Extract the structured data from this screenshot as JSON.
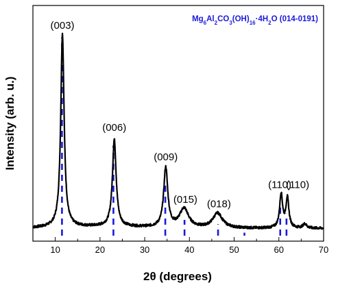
{
  "chart_data": {
    "type": "line",
    "title": "",
    "xlabel": "2θ (degrees)",
    "ylabel": "Intensity (arb. u.)",
    "xlim": [
      5,
      70
    ],
    "ylim": [
      0,
      1
    ],
    "xticks": [
      10,
      20,
      30,
      40,
      50,
      60,
      70
    ],
    "y_ticklabels_shown": false,
    "grid": false,
    "legend": {
      "position": "top-right",
      "parts": [
        {
          "text": "Mg",
          "sub": false
        },
        {
          "text": "6",
          "sub": true
        },
        {
          "text": "Al",
          "sub": false
        },
        {
          "text": "2",
          "sub": true
        },
        {
          "text": "CO",
          "sub": false
        },
        {
          "text": "3",
          "sub": true
        },
        {
          "text": "(OH)",
          "sub": false
        },
        {
          "text": "16",
          "sub": true
        },
        {
          "text": "·4H",
          "sub": false
        },
        {
          "text": "2",
          "sub": true
        },
        {
          "text": "O (014-0191)",
          "sub": false
        }
      ],
      "color": "#1a1adb"
    },
    "series": [
      {
        "kind": "pattern",
        "color": "#000000",
        "baseline": 0.06,
        "peaks": [
          {
            "x": 11.6,
            "height": 0.91,
            "width": 0.45
          },
          {
            "x": 23.2,
            "height": 0.41,
            "width": 0.5
          },
          {
            "x": 34.7,
            "height": 0.28,
            "width": 0.55
          },
          {
            "x": 38.8,
            "height": 0.09,
            "width": 1.2
          },
          {
            "x": 46.3,
            "height": 0.07,
            "width": 1.3
          },
          {
            "x": 60.5,
            "height": 0.16,
            "width": 0.4
          },
          {
            "x": 61.9,
            "height": 0.14,
            "width": 0.4
          },
          {
            "x": 65.8,
            "height": 0.02,
            "width": 0.5
          }
        ]
      },
      {
        "kind": "reference",
        "color": "#1a1adb",
        "style": "dashed",
        "lines": [
          {
            "x": 11.5,
            "height": 0.96
          },
          {
            "x": 23.0,
            "height": 0.45
          },
          {
            "x": 34.6,
            "height": 0.28
          },
          {
            "x": 38.9,
            "height": 0.1
          },
          {
            "x": 46.4,
            "height": 0.08
          },
          {
            "x": 52.3,
            "height": 0.04
          },
          {
            "x": 60.3,
            "height": 0.16
          },
          {
            "x": 61.7,
            "height": 0.13
          }
        ]
      }
    ],
    "annotations": [
      {
        "text": "(003)",
        "x": 11.6,
        "y": 1.0
      },
      {
        "text": "(006)",
        "x": 23.2,
        "y": 0.52
      },
      {
        "text": "(009)",
        "x": 34.7,
        "y": 0.38
      },
      {
        "text": "(015)",
        "x": 39.1,
        "y": 0.18
      },
      {
        "text": "(018)",
        "x": 46.6,
        "y": 0.16
      },
      {
        "text": "(110)",
        "x": 60.2,
        "y": 0.25
      },
      {
        "text": "(110)",
        "x": 64.2,
        "y": 0.25
      }
    ]
  }
}
